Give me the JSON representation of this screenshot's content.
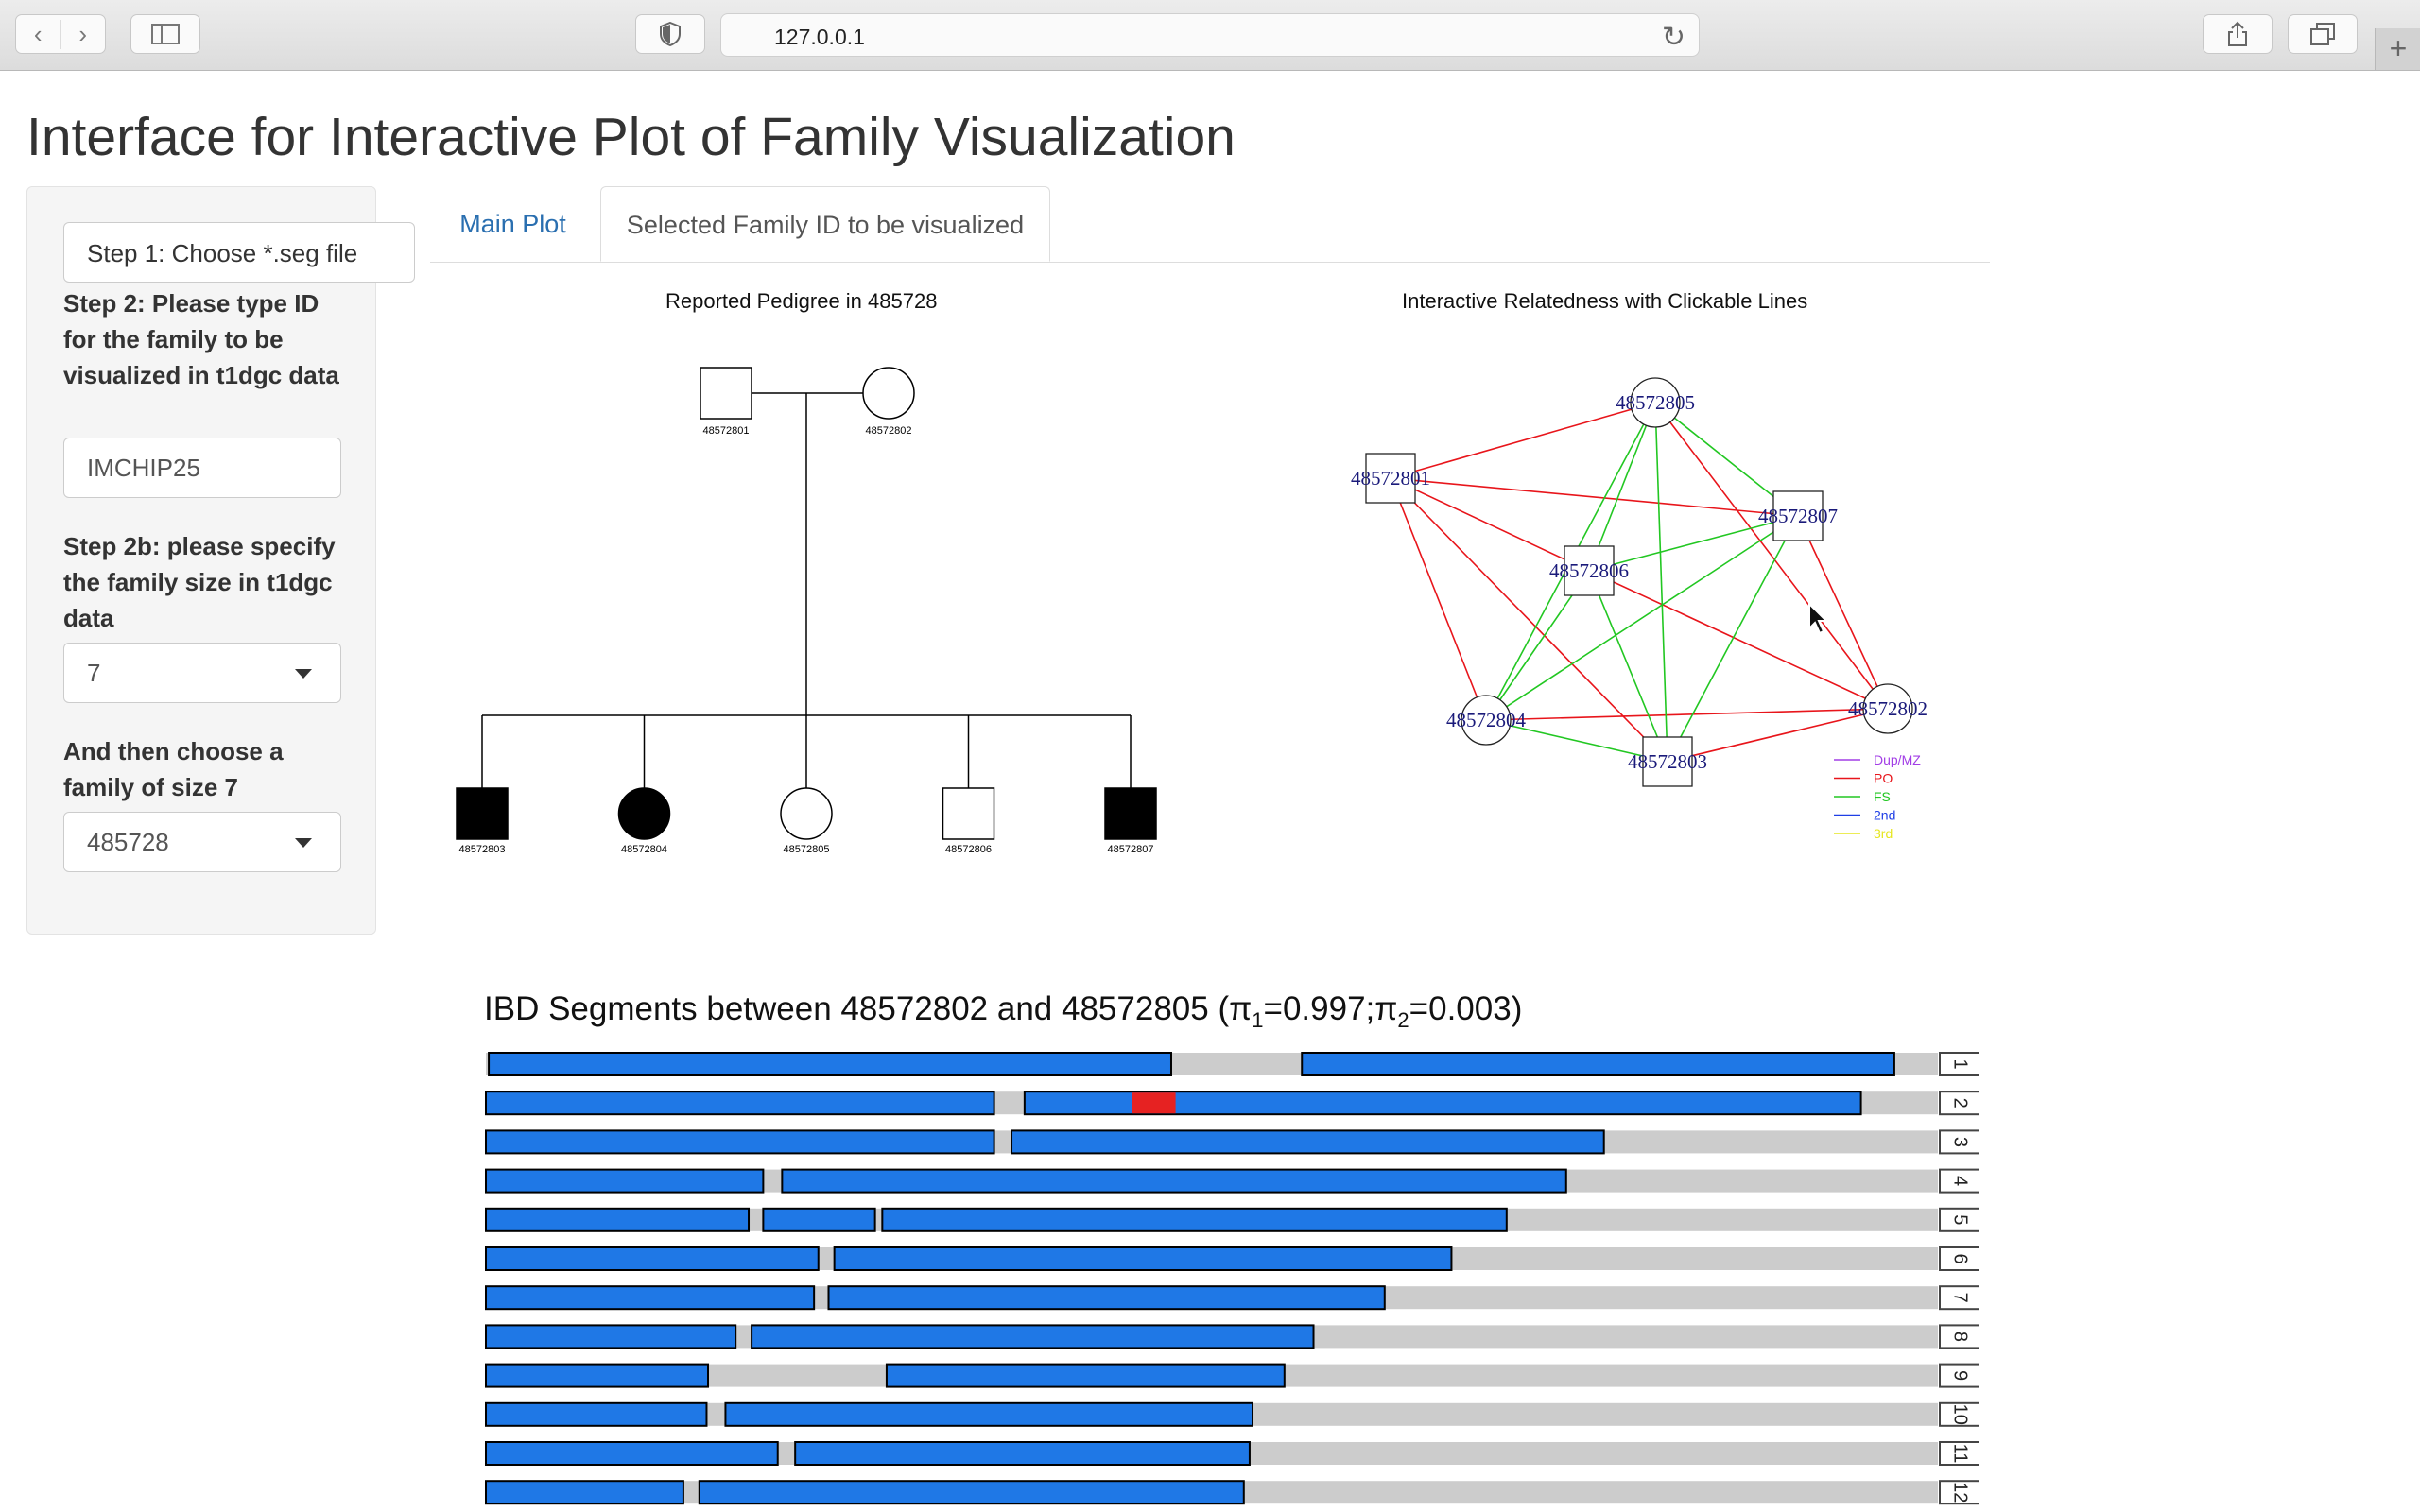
{
  "browser": {
    "url": "127.0.0.1"
  },
  "page_title": "Interface for Interactive Plot of Family Visualization",
  "sidebar": {
    "file_button": "Step 1: Choose *.seg file",
    "step2_label": "Step 2: Please type ID for the family to be visualized in t1dgc data",
    "family_id_value": "IMCHIP25",
    "step2b_label": "Step 2b: please specify the family size in t1dgc data",
    "family_size_value": "7",
    "choose_label": "And then choose a family of size 7",
    "family_value": "485728"
  },
  "tabs": [
    {
      "label": "Main Plot",
      "active": false
    },
    {
      "label": "Selected Family ID to be visualized",
      "active": true
    }
  ],
  "pedigree": {
    "title": "Reported Pedigree in 485728",
    "parents": [
      {
        "id": "48572801",
        "shape": "square",
        "affected": false
      },
      {
        "id": "48572802",
        "shape": "circle",
        "affected": false
      }
    ],
    "children": [
      {
        "id": "48572803",
        "shape": "square",
        "affected": true
      },
      {
        "id": "48572804",
        "shape": "circle",
        "affected": true
      },
      {
        "id": "48572805",
        "shape": "circle",
        "affected": false
      },
      {
        "id": "48572806",
        "shape": "square",
        "affected": false
      },
      {
        "id": "48572807",
        "shape": "square",
        "affected": true
      }
    ]
  },
  "network": {
    "title": "Interactive Relatedness with Clickable Lines",
    "nodes": [
      {
        "id": "48572805",
        "shape": "circle"
      },
      {
        "id": "48572801",
        "shape": "square"
      },
      {
        "id": "48572807",
        "shape": "square"
      },
      {
        "id": "48572806",
        "shape": "square"
      },
      {
        "id": "48572804",
        "shape": "circle"
      },
      {
        "id": "48572802",
        "shape": "circle"
      },
      {
        "id": "48572803",
        "shape": "square"
      }
    ],
    "edges": [
      {
        "a": "48572801",
        "b": "48572805",
        "type": "PO"
      },
      {
        "a": "48572801",
        "b": "48572807",
        "type": "PO"
      },
      {
        "a": "48572801",
        "b": "48572806",
        "type": "PO"
      },
      {
        "a": "48572801",
        "b": "48572804",
        "type": "PO"
      },
      {
        "a": "48572801",
        "b": "48572803",
        "type": "PO"
      },
      {
        "a": "48572802",
        "b": "48572805",
        "type": "PO"
      },
      {
        "a": "48572802",
        "b": "48572807",
        "type": "PO"
      },
      {
        "a": "48572802",
        "b": "48572806",
        "type": "PO"
      },
      {
        "a": "48572802",
        "b": "48572804",
        "type": "PO"
      },
      {
        "a": "48572802",
        "b": "48572803",
        "type": "PO"
      },
      {
        "a": "48572805",
        "b": "48572807",
        "type": "FS"
      },
      {
        "a": "48572805",
        "b": "48572806",
        "type": "FS"
      },
      {
        "a": "48572805",
        "b": "48572804",
        "type": "FS"
      },
      {
        "a": "48572805",
        "b": "48572803",
        "type": "FS"
      },
      {
        "a": "48572807",
        "b": "48572806",
        "type": "FS"
      },
      {
        "a": "48572807",
        "b": "48572804",
        "type": "FS"
      },
      {
        "a": "48572807",
        "b": "48572803",
        "type": "FS"
      },
      {
        "a": "48572806",
        "b": "48572804",
        "type": "FS"
      },
      {
        "a": "48572806",
        "b": "48572803",
        "type": "FS"
      },
      {
        "a": "48572804",
        "b": "48572803",
        "type": "FS"
      }
    ],
    "legend": [
      {
        "label": "Dup/MZ",
        "color": "#a23ee6"
      },
      {
        "label": "PO",
        "color": "#e8151b"
      },
      {
        "label": "FS",
        "color": "#22c722"
      },
      {
        "label": "2nd",
        "color": "#1f3fe6"
      },
      {
        "label": "3rd",
        "color": "#e6e61f"
      }
    ]
  },
  "ibd": {
    "title_prefix": "IBD Segments between 48572802 and 48572805 (",
    "pi1_label": "π",
    "pi1_sub": "1",
    "pi1_value": "=0.997;",
    "pi2_label": "π",
    "pi2_sub": "2",
    "pi2_value": "=0.003)",
    "colors": {
      "ibd1": "#1f78e6",
      "ibd2": "#e62222",
      "background": "#cccccc"
    },
    "chromosomes": [
      {
        "chr": "1",
        "ibd1": [
          [
            0.002,
            0.472
          ],
          [
            0.562,
            0.97
          ]
        ],
        "ibd2": []
      },
      {
        "chr": "2",
        "ibd1": [
          [
            0.0,
            0.35
          ],
          [
            0.371,
            0.947
          ]
        ],
        "ibd2": [
          [
            0.445,
            0.475
          ]
        ]
      },
      {
        "chr": "3",
        "ibd1": [
          [
            0.0,
            0.35
          ],
          [
            0.362,
            0.77
          ]
        ],
        "ibd2": []
      },
      {
        "chr": "4",
        "ibd1": [
          [
            0.0,
            0.191
          ],
          [
            0.204,
            0.744
          ]
        ],
        "ibd2": []
      },
      {
        "chr": "5",
        "ibd1": [
          [
            0.0,
            0.181
          ],
          [
            0.191,
            0.268
          ],
          [
            0.273,
            0.703
          ]
        ],
        "ibd2": []
      },
      {
        "chr": "6",
        "ibd1": [
          [
            0.0,
            0.229
          ],
          [
            0.24,
            0.665
          ]
        ],
        "ibd2": []
      },
      {
        "chr": "7",
        "ibd1": [
          [
            0.0,
            0.226
          ],
          [
            0.236,
            0.619
          ]
        ],
        "ibd2": []
      },
      {
        "chr": "8",
        "ibd1": [
          [
            0.0,
            0.172
          ],
          [
            0.183,
            0.57
          ]
        ],
        "ibd2": []
      },
      {
        "chr": "9",
        "ibd1": [
          [
            0.0,
            0.153
          ],
          [
            0.276,
            0.55
          ]
        ],
        "ibd2": []
      },
      {
        "chr": "10",
        "ibd1": [
          [
            0.0,
            0.152
          ],
          [
            0.165,
            0.528
          ]
        ],
        "ibd2": []
      },
      {
        "chr": "11",
        "ibd1": [
          [
            0.0,
            0.201
          ],
          [
            0.213,
            0.526
          ]
        ],
        "ibd2": []
      },
      {
        "chr": "12",
        "ibd1": [
          [
            0.0,
            0.136
          ],
          [
            0.147,
            0.522
          ]
        ],
        "ibd2": []
      }
    ]
  }
}
